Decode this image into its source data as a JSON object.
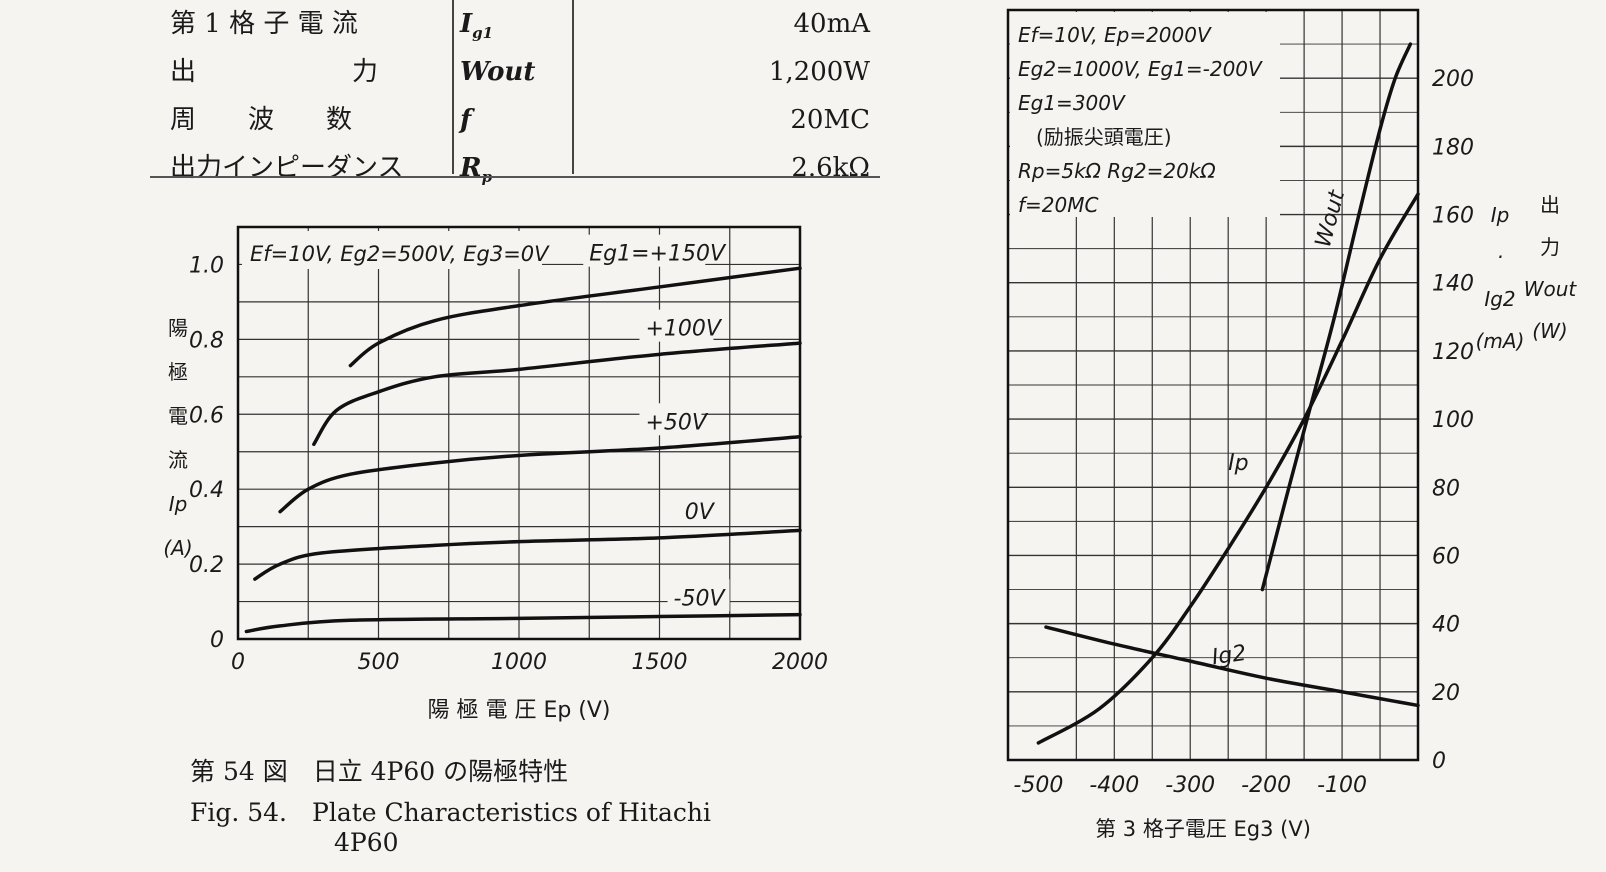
{
  "spec_table": {
    "rows": [
      {
        "name": "第 1 格 子 電 流",
        "symbol": "I",
        "symbol_sub": "g1",
        "value": "40mA"
      },
      {
        "name": "出　　　　　　力",
        "symbol": "Wout",
        "symbol_sub": "",
        "value": "1,200W"
      },
      {
        "name": "周　　波　　数",
        "symbol": "f",
        "symbol_sub": "",
        "value": "20MC"
      },
      {
        "name": "出力インピーダンス",
        "symbol": "R",
        "symbol_sub": "p",
        "value": "2.6kΩ"
      }
    ]
  },
  "captions": {
    "jp": "第 54 図　日立 4P60 の陽極特性",
    "en_line1": "Fig. 54.　Plate Characteristics of Hitachi",
    "en_line2": "4P60"
  },
  "chart_data": [
    {
      "type": "line",
      "title": "",
      "conditions": "Ef=10V, Eg2=500V, Eg3=0V",
      "xlabel": "陽 極 電 圧  Ep (V)",
      "ylabel_lines": [
        "陽",
        "極",
        "電",
        "流",
        "Ip",
        "(A)"
      ],
      "xlim": [
        0,
        2000
      ],
      "ylim": [
        0,
        1.1
      ],
      "x_ticks": [
        0,
        500,
        1000,
        1500,
        2000
      ],
      "x_tick_labels": [
        "0",
        "500",
        "1000",
        "1500",
        "2000"
      ],
      "y_ticks": [
        0,
        0.2,
        0.4,
        0.6,
        0.8,
        1.0
      ],
      "y_tick_labels": [
        "0",
        "0.2",
        "0.4",
        "0.6",
        "0.8",
        "1.0"
      ],
      "grid": true,
      "series": [
        {
          "name": "Eg1=+150V",
          "x": [
            400,
            500,
            700,
            1000,
            1500,
            2000
          ],
          "y": [
            0.73,
            0.79,
            0.85,
            0.89,
            0.94,
            0.99
          ]
        },
        {
          "name": "+100V",
          "x": [
            270,
            350,
            500,
            700,
            1000,
            1500,
            2000
          ],
          "y": [
            0.52,
            0.61,
            0.66,
            0.7,
            0.72,
            0.76,
            0.79
          ]
        },
        {
          "name": "+50V",
          "x": [
            150,
            250,
            400,
            700,
            1000,
            1500,
            2000
          ],
          "y": [
            0.34,
            0.4,
            0.44,
            0.47,
            0.49,
            0.51,
            0.54
          ]
        },
        {
          "name": "0V",
          "x": [
            60,
            150,
            300,
            700,
            1000,
            1500,
            2000
          ],
          "y": [
            0.16,
            0.2,
            0.23,
            0.25,
            0.26,
            0.27,
            0.29
          ]
        },
        {
          "name": "-50V",
          "x": [
            30,
            150,
            400,
            1000,
            1500,
            2000
          ],
          "y": [
            0.02,
            0.035,
            0.05,
            0.055,
            0.06,
            0.065
          ]
        }
      ]
    },
    {
      "type": "line",
      "title": "",
      "conditions": [
        "Ef=10V, Ep=2000V",
        "Eg2=1000V, Eg1=-200V",
        "Eg1=300V",
        "(励振尖頭電圧)",
        "Rp=5kΩ  Rg2=20kΩ",
        "f=20MC"
      ],
      "xlabel": "第 3 格子電圧  Eg3 (V)",
      "ylabel_lines": [
        "Ip",
        "·",
        "Ig2",
        "(mA)"
      ],
      "ylabel2_lines": [
        "出",
        "力",
        "Wout",
        "(W)"
      ],
      "xlim": [
        -540,
        0
      ],
      "ylim": [
        0,
        220
      ],
      "x_ticks": [
        -500,
        -400,
        -300,
        -200,
        -100
      ],
      "x_tick_labels": [
        "-500",
        "-400",
        "-300",
        "-200",
        "-100"
      ],
      "y_ticks": [
        0,
        20,
        40,
        60,
        80,
        100,
        120,
        140,
        160,
        180,
        200
      ],
      "y_tick_labels": [
        "0",
        "20",
        "40",
        "60",
        "80",
        "100",
        "120",
        "140",
        "160",
        "180",
        "200"
      ],
      "grid": true,
      "series": [
        {
          "name": "Wout",
          "x": [
            -205,
            -170,
            -140,
            -110,
            -80,
            -50,
            -30,
            -10
          ],
          "y": [
            50,
            80,
            105,
            130,
            158,
            185,
            200,
            210
          ]
        },
        {
          "name": "Ip",
          "x": [
            -500,
            -420,
            -350,
            -300,
            -250,
            -200,
            -150,
            -100,
            -50,
            0
          ],
          "y": [
            5,
            15,
            30,
            45,
            62,
            80,
            100,
            123,
            147,
            166
          ]
        },
        {
          "name": "Ig2",
          "x": [
            -490,
            -400,
            -300,
            -200,
            -100,
            0
          ],
          "y": [
            39,
            34,
            29,
            24,
            20,
            16
          ]
        }
      ]
    }
  ]
}
